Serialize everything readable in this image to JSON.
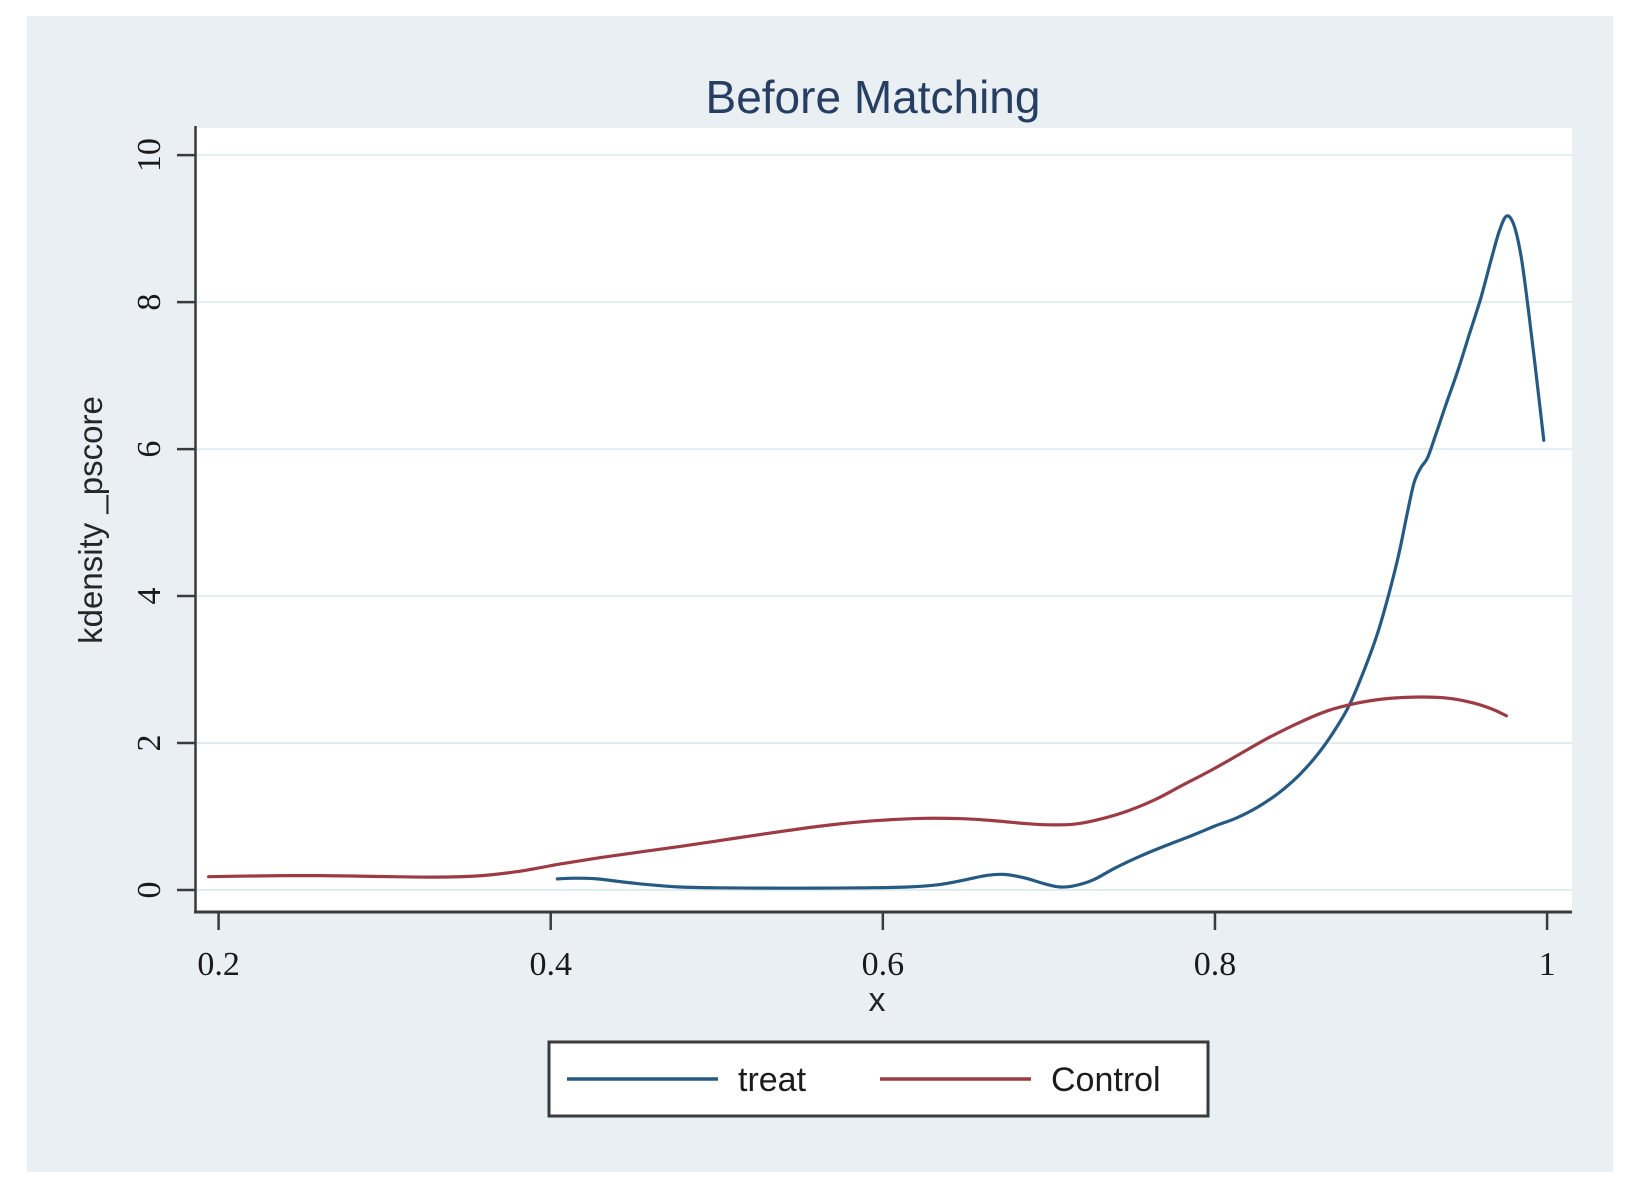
{
  "chart_data": {
    "type": "line",
    "title": "Before Matching",
    "xlabel": "x",
    "ylabel": "kdensity _pscore",
    "x_ticks": [
      0.2,
      0.4,
      0.6,
      0.8,
      1
    ],
    "x_tick_labels": [
      "0.2",
      "0.4",
      "0.6",
      "0.8",
      "1"
    ],
    "y_ticks": [
      0,
      2,
      4,
      6,
      8,
      10
    ],
    "y_tick_labels": [
      "0",
      "2",
      "4",
      "6",
      "8",
      "10"
    ],
    "xlim": [
      0.187,
      1.015
    ],
    "ylim": [
      -0.3,
      10.37
    ],
    "grid": "horizontal-only",
    "legend_position": "bottom-center",
    "series": [
      {
        "name": "treat",
        "color": "#265a83",
        "points": [
          [
            0.404,
            0.15
          ],
          [
            0.415,
            0.16
          ],
          [
            0.428,
            0.15
          ],
          [
            0.443,
            0.11
          ],
          [
            0.46,
            0.07
          ],
          [
            0.478,
            0.04
          ],
          [
            0.5,
            0.03
          ],
          [
            0.53,
            0.025
          ],
          [
            0.56,
            0.025
          ],
          [
            0.59,
            0.03
          ],
          [
            0.615,
            0.04
          ],
          [
            0.633,
            0.07
          ],
          [
            0.65,
            0.14
          ],
          [
            0.663,
            0.2
          ],
          [
            0.674,
            0.21
          ],
          [
            0.686,
            0.16
          ],
          [
            0.698,
            0.08
          ],
          [
            0.707,
            0.04
          ],
          [
            0.716,
            0.06
          ],
          [
            0.727,
            0.14
          ],
          [
            0.74,
            0.3
          ],
          [
            0.755,
            0.46
          ],
          [
            0.77,
            0.6
          ],
          [
            0.786,
            0.74
          ],
          [
            0.8,
            0.87
          ],
          [
            0.813,
            0.98
          ],
          [
            0.826,
            1.13
          ],
          [
            0.839,
            1.33
          ],
          [
            0.851,
            1.57
          ],
          [
            0.862,
            1.85
          ],
          [
            0.872,
            2.17
          ],
          [
            0.881,
            2.52
          ],
          [
            0.89,
            3.0
          ],
          [
            0.898,
            3.5
          ],
          [
            0.905,
            4.05
          ],
          [
            0.911,
            4.6
          ],
          [
            0.916,
            5.15
          ],
          [
            0.92,
            5.55
          ],
          [
            0.924,
            5.75
          ],
          [
            0.928,
            5.88
          ],
          [
            0.933,
            6.2
          ],
          [
            0.939,
            6.6
          ],
          [
            0.946,
            7.05
          ],
          [
            0.953,
            7.55
          ],
          [
            0.96,
            8.05
          ],
          [
            0.966,
            8.55
          ],
          [
            0.971,
            8.95
          ],
          [
            0.9755,
            9.17
          ],
          [
            0.98,
            9.05
          ],
          [
            0.9845,
            8.6
          ],
          [
            0.989,
            7.85
          ],
          [
            0.9935,
            7.0
          ],
          [
            0.998,
            6.12
          ]
        ]
      },
      {
        "name": "Control",
        "color": "#9c3b44",
        "points": [
          [
            0.194,
            0.18
          ],
          [
            0.22,
            0.19
          ],
          [
            0.25,
            0.195
          ],
          [
            0.28,
            0.19
          ],
          [
            0.305,
            0.18
          ],
          [
            0.33,
            0.175
          ],
          [
            0.355,
            0.19
          ],
          [
            0.38,
            0.25
          ],
          [
            0.405,
            0.35
          ],
          [
            0.43,
            0.44
          ],
          [
            0.455,
            0.52
          ],
          [
            0.48,
            0.6
          ],
          [
            0.51,
            0.7
          ],
          [
            0.54,
            0.8
          ],
          [
            0.57,
            0.89
          ],
          [
            0.6,
            0.95
          ],
          [
            0.625,
            0.975
          ],
          [
            0.648,
            0.97
          ],
          [
            0.668,
            0.94
          ],
          [
            0.688,
            0.9
          ],
          [
            0.703,
            0.885
          ],
          [
            0.717,
            0.9
          ],
          [
            0.732,
            0.97
          ],
          [
            0.748,
            1.08
          ],
          [
            0.764,
            1.23
          ],
          [
            0.78,
            1.42
          ],
          [
            0.797,
            1.62
          ],
          [
            0.815,
            1.85
          ],
          [
            0.833,
            2.08
          ],
          [
            0.851,
            2.28
          ],
          [
            0.868,
            2.44
          ],
          [
            0.885,
            2.54
          ],
          [
            0.902,
            2.6
          ],
          [
            0.92,
            2.625
          ],
          [
            0.938,
            2.615
          ],
          [
            0.953,
            2.56
          ],
          [
            0.966,
            2.47
          ],
          [
            0.9755,
            2.37
          ]
        ]
      }
    ],
    "colors": {
      "panel_background": "#e9eff2",
      "plot_background": "#ffffff",
      "gridline": "#e2edf0",
      "axis": "#3b3b3b",
      "tick_label": "#1a1a1a",
      "title": "#273e63",
      "axis_title": "#262626",
      "legend_text": "#1c1c1c",
      "legend_border": "#3b3b3b",
      "legend_background": "#ffffff"
    }
  }
}
